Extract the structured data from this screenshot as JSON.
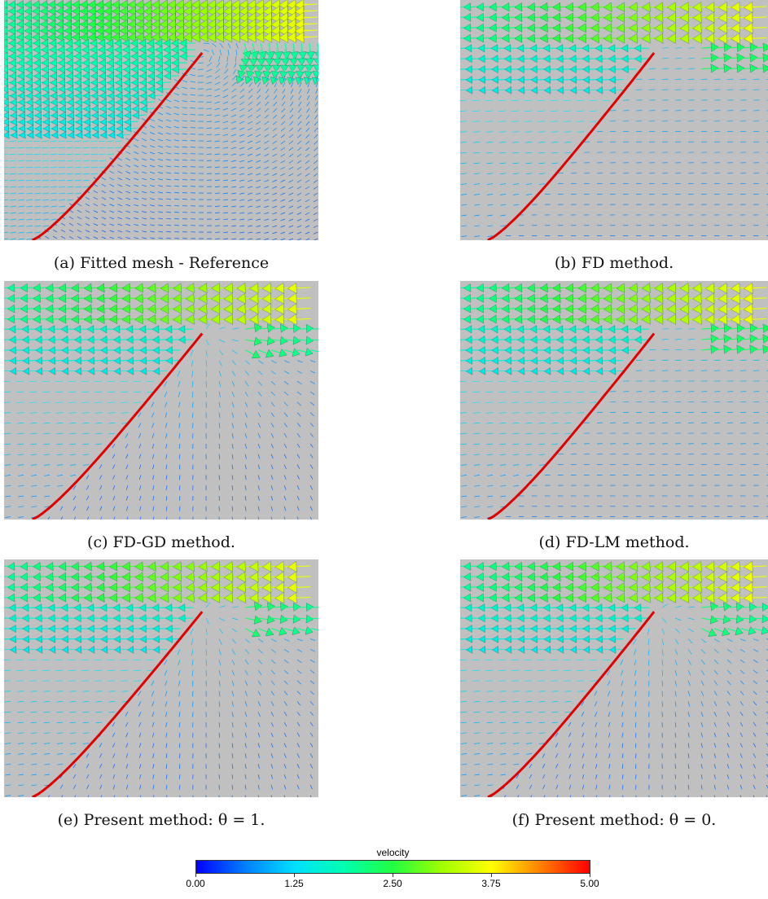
{
  "panels": [
    {
      "id": "a",
      "caption": "(a) Fitted mesh - Reference"
    },
    {
      "id": "b",
      "caption": "(b) FD method."
    },
    {
      "id": "c",
      "caption": "(c) FD-GD method."
    },
    {
      "id": "d",
      "caption": "(d) FD-LM method."
    },
    {
      "id": "e",
      "caption": "(e) Present method: θ = 1."
    },
    {
      "id": "f",
      "caption": "(f) Present method: θ = 0."
    }
  ],
  "colorbar": {
    "title": "velocity",
    "ticks": [
      "0.00",
      "1.25",
      "2.50",
      "3.75",
      "5.00"
    ],
    "colors": [
      "#0000ff",
      "#0080ff",
      "#00e0ff",
      "#00ffb0",
      "#20ff40",
      "#a0ff00",
      "#ffff00",
      "#ff8000",
      "#ff0000"
    ]
  },
  "interface_color": "#e00000",
  "background_color": "#c0c0c0"
}
